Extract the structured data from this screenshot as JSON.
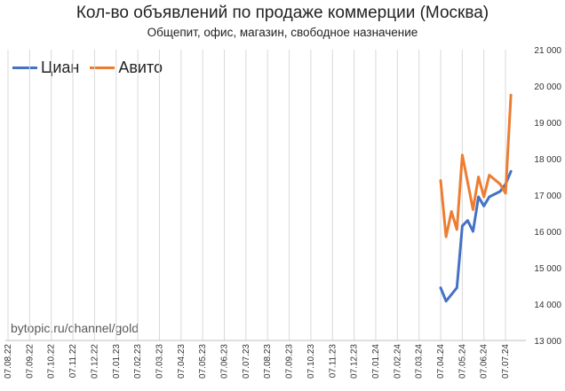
{
  "chart_data": {
    "type": "line",
    "title": "Кол-во объявлений по продаже коммерции (Москва)",
    "subtitle": "Общепит, офис, магазин, свободное назначение",
    "watermark": "bytopic.ru/channel/gold",
    "x_labels": [
      "07.08.22",
      "07.09.22",
      "07.10.22",
      "07.11.22",
      "07.12.22",
      "07.01.23",
      "07.02.23",
      "07.03.23",
      "07.04.23",
      "07.05.23",
      "07.06.23",
      "07.07.23",
      "07.08.23",
      "07.09.23",
      "07.10.23",
      "07.11.23",
      "07.12.23",
      "07.01.24",
      "07.02.24",
      "07.03.24",
      "07.04.24",
      "07.05.24",
      "07.06.24",
      "07.07.24"
    ],
    "y_ticks": [
      "13 000",
      "14 000",
      "15 000",
      "16 000",
      "17 000",
      "18 000",
      "19 000",
      "20 000",
      "21 000"
    ],
    "ylim": [
      13000,
      21000
    ],
    "grid": true,
    "legend_position": "top-left",
    "series": [
      {
        "name": "Циан",
        "color": "#4472c4",
        "points": [
          [
            20.0,
            14450
          ],
          [
            20.25,
            14080
          ],
          [
            20.75,
            14450
          ],
          [
            21.0,
            16150
          ],
          [
            21.25,
            16300
          ],
          [
            21.5,
            16000
          ],
          [
            21.75,
            16950
          ],
          [
            22.0,
            16700
          ],
          [
            22.25,
            16950
          ],
          [
            22.75,
            17100
          ],
          [
            23.0,
            17300
          ],
          [
            23.25,
            17650
          ]
        ]
      },
      {
        "name": "Авито",
        "color": "#ed7d31",
        "points": [
          [
            20.0,
            17400
          ],
          [
            20.25,
            15850
          ],
          [
            20.5,
            16550
          ],
          [
            20.75,
            16050
          ],
          [
            21.0,
            18100
          ],
          [
            21.5,
            16600
          ],
          [
            21.75,
            17500
          ],
          [
            22.0,
            16950
          ],
          [
            22.25,
            17550
          ],
          [
            22.75,
            17300
          ],
          [
            23.0,
            17050
          ],
          [
            23.25,
            19750
          ]
        ]
      }
    ]
  }
}
